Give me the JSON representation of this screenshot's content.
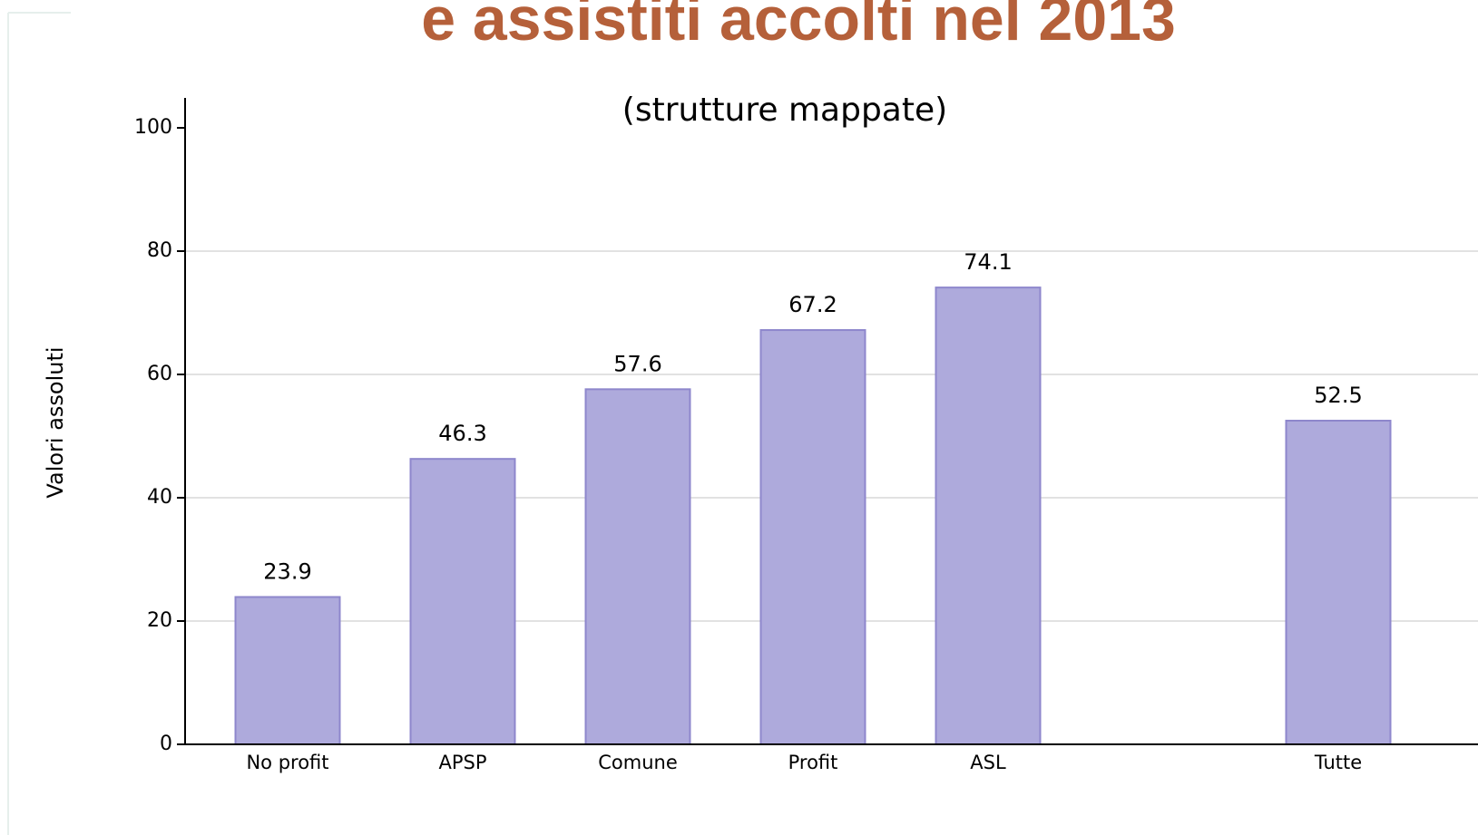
{
  "chart_data": {
    "type": "bar",
    "title": "e assistiti accolti nel 2013",
    "subtitle": "(strutture mappate)",
    "y_label": "Valori assoluti",
    "categories": [
      "No profit",
      "APSP",
      "Comune",
      "Profit",
      "ASL",
      null,
      "Tutte"
    ],
    "values": [
      23.9,
      46.3,
      57.6,
      67.2,
      74.1,
      null,
      52.5
    ],
    "color": "#aeaadc",
    "edge_color": "#8e87cc",
    "title_color": "#b5603a",
    "ylim": [
      0,
      100
    ],
    "yticks": [
      0,
      20,
      40,
      60,
      80,
      100
    ],
    "grid": true
  }
}
